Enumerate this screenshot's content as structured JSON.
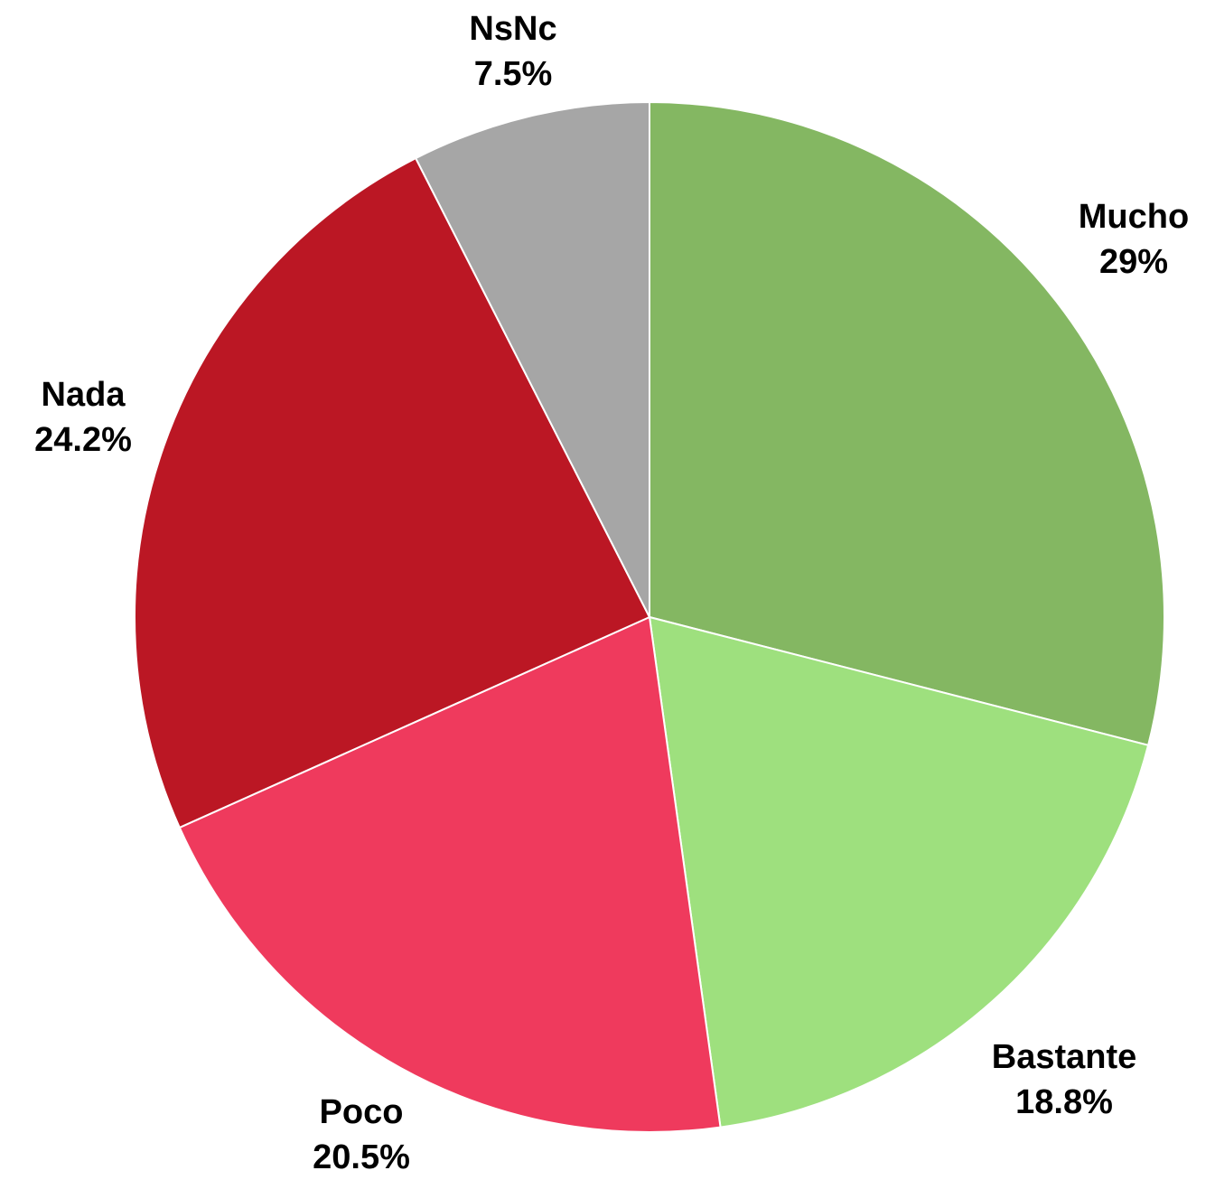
{
  "chart_data": {
    "type": "pie",
    "title": "",
    "legend": "none",
    "slices": [
      {
        "label": "Mucho",
        "value": 29,
        "display": "29%",
        "color": "#84b762"
      },
      {
        "label": "Bastante",
        "value": 18.8,
        "display": "18.8%",
        "color": "#9ee07e"
      },
      {
        "label": "Poco",
        "value": 20.5,
        "display": "20.5%",
        "color": "#ef3a5d"
      },
      {
        "label": "Nada",
        "value": 24.2,
        "display": "24.2%",
        "color": "#bb1724"
      },
      {
        "label": "NsNc",
        "value": 7.5,
        "display": "7.5%",
        "color": "#a6a6a6"
      }
    ]
  }
}
